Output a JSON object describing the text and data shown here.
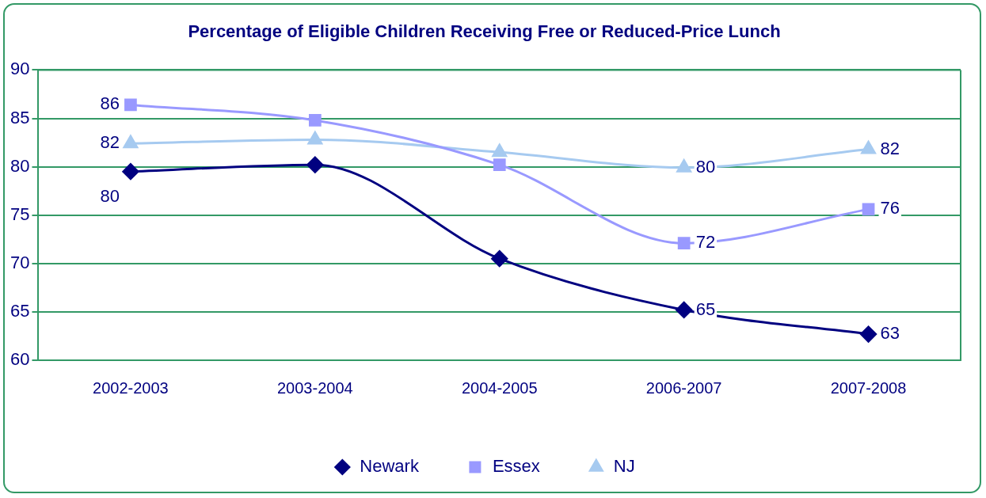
{
  "chart_data": {
    "type": "line",
    "title": "Percentage of Eligible Children Receiving Free or Reduced-Price Lunch",
    "categories": [
      "2002-2003",
      "2003-2004",
      "2004-2005",
      "2006-2007",
      "2007-2008"
    ],
    "series": [
      {
        "name": "Newark",
        "color": "#000080",
        "marker": "diamond",
        "values": [
          79.5,
          80.2,
          70.5,
          65.2,
          62.7
        ],
        "value_labels": [
          "80",
          null,
          null,
          "65",
          "63"
        ]
      },
      {
        "name": "Essex",
        "color": "#9999ff",
        "marker": "square",
        "values": [
          86.4,
          84.8,
          80.2,
          72.1,
          75.6
        ],
        "value_labels": [
          "86",
          null,
          null,
          "72",
          "76"
        ]
      },
      {
        "name": "NJ",
        "color": "#a6caf0",
        "marker": "triangle",
        "values": [
          82.4,
          82.8,
          81.5,
          79.9,
          81.8
        ],
        "value_labels": [
          "82",
          null,
          null,
          "80",
          "82"
        ]
      }
    ],
    "ylim": [
      60,
      90
    ],
    "yticks": [
      60,
      65,
      70,
      75,
      80,
      85,
      90
    ],
    "grid": "y",
    "legend": "bottom",
    "line_style": "solid"
  }
}
